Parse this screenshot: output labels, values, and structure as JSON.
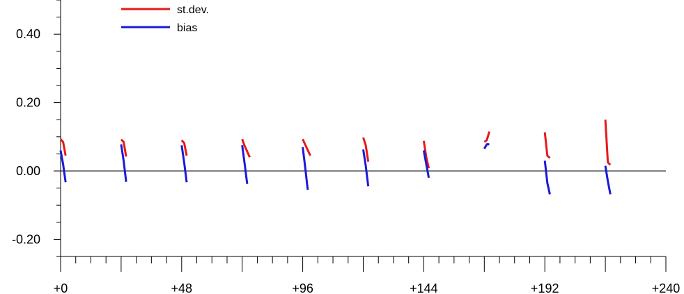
{
  "chart_data": {
    "type": "line",
    "title": "",
    "xlabel": "",
    "ylabel": "",
    "xlim": [
      0,
      240
    ],
    "ylim": [
      -0.25,
      0.5
    ],
    "x_ticks": [
      0,
      48,
      96,
      144,
      192,
      240
    ],
    "x_tick_labels": [
      "+0",
      "+48",
      "+96",
      "+144",
      "+192",
      "+240"
    ],
    "y_ticks": [
      -0.2,
      0.0,
      0.2,
      0.4
    ],
    "y_tick_labels": [
      "-0.20",
      "0.00",
      "0.20",
      "0.40"
    ],
    "zero_line": true,
    "legend": {
      "placement": "top-left"
    },
    "colors": {
      "st_dev": "#e8181a",
      "bias": "#1a1ad6",
      "axis": "#000000"
    },
    "series": [
      {
        "name": "st.dev.",
        "color": "#e8181a",
        "segments": [
          [
            [
              0,
              0.093
            ],
            [
              1,
              0.085
            ],
            [
              2,
              0.045
            ]
          ],
          [
            [
              24,
              0.092
            ],
            [
              25,
              0.085
            ],
            [
              26,
              0.042
            ]
          ],
          [
            [
              48,
              0.09
            ],
            [
              49,
              0.082
            ],
            [
              50,
              0.045
            ]
          ],
          [
            [
              72,
              0.093
            ],
            [
              73,
              0.073
            ],
            [
              75,
              0.04
            ]
          ],
          [
            [
              96,
              0.093
            ],
            [
              97,
              0.077
            ],
            [
              99,
              0.045
            ]
          ],
          [
            [
              120,
              0.098
            ],
            [
              121,
              0.075
            ],
            [
              122,
              0.027
            ]
          ],
          [
            [
              144,
              0.088
            ],
            [
              145,
              0.04
            ],
            [
              146,
              0.008
            ]
          ],
          [
            [
              168,
              0.085
            ],
            [
              169,
              0.09
            ],
            [
              170,
              0.115
            ]
          ],
          [
            [
              192,
              0.113
            ],
            [
              193,
              0.045
            ],
            [
              194,
              0.038
            ]
          ],
          [
            [
              216,
              0.15
            ],
            [
              217,
              0.025
            ],
            [
              218,
              0.018
            ]
          ]
        ]
      },
      {
        "name": "bias",
        "color": "#1a1ad6",
        "segments": [
          [
            [
              0,
              0.06
            ],
            [
              1,
              0.02
            ],
            [
              2,
              -0.033
            ]
          ],
          [
            [
              24,
              0.078
            ],
            [
              25,
              0.03
            ],
            [
              26,
              -0.032
            ]
          ],
          [
            [
              48,
              0.075
            ],
            [
              49,
              0.025
            ],
            [
              50,
              -0.033
            ]
          ],
          [
            [
              72,
              0.075
            ],
            [
              73,
              0.02
            ],
            [
              74,
              -0.038
            ]
          ],
          [
            [
              96,
              0.07
            ],
            [
              97,
              0.01
            ],
            [
              98,
              -0.055
            ]
          ],
          [
            [
              120,
              0.063
            ],
            [
              121,
              0.015
            ],
            [
              122,
              -0.045
            ]
          ],
          [
            [
              144,
              0.06
            ],
            [
              145,
              0.02
            ],
            [
              146,
              -0.02
            ]
          ],
          [
            [
              168,
              0.065
            ],
            [
              169,
              0.078
            ],
            [
              170,
              0.078
            ]
          ],
          [
            [
              192,
              0.03
            ],
            [
              193,
              -0.035
            ],
            [
              194,
              -0.068
            ]
          ],
          [
            [
              216,
              0.015
            ],
            [
              217,
              -0.03
            ],
            [
              218,
              -0.068
            ]
          ]
        ]
      }
    ]
  }
}
